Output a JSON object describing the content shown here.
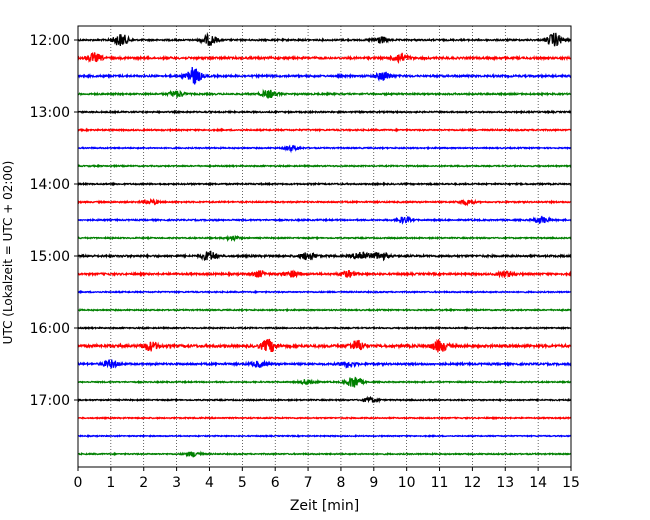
{
  "chart_data": {
    "type": "line",
    "subtype": "helicorder-seismogram",
    "title": "",
    "xlabel": "Zeit  [min]",
    "ylabel": "UTC (Lokalzeit = UTC + 02:00)",
    "xlim": [
      0,
      15
    ],
    "xticks": [
      "0",
      "1",
      "2",
      "3",
      "4",
      "5",
      "6",
      "7",
      "8",
      "9",
      "10",
      "11",
      "12",
      "13",
      "14",
      "15"
    ],
    "grid": "vertical dotted at each minute",
    "y_axis": "reversed (time increases downward)",
    "ytick_labels": [
      {
        "label": "12:00",
        "row": 0
      },
      {
        "label": "13:00",
        "row": 4
      },
      {
        "label": "14:00",
        "row": 8
      },
      {
        "label": "15:00",
        "row": 12
      },
      {
        "label": "16:00",
        "row": 16
      },
      {
        "label": "17:00",
        "row": 20
      }
    ],
    "row_minutes": 15,
    "color_cycle": [
      "#000000",
      "#ff0000",
      "#0000ff",
      "#008000"
    ],
    "traces": [
      {
        "row": 0,
        "start": "12:00",
        "color": "#000000",
        "noise": 0.45,
        "events": [
          [
            1.3,
            1.3
          ],
          [
            4.0,
            1.1
          ],
          [
            9.2,
            0.7
          ],
          [
            14.5,
            1.4
          ]
        ]
      },
      {
        "row": 1,
        "start": "12:15",
        "color": "#ff0000",
        "noise": 0.6,
        "events": [
          [
            0.5,
            0.9
          ],
          [
            9.8,
            1.0
          ]
        ]
      },
      {
        "row": 2,
        "start": "12:30",
        "color": "#0000ff",
        "noise": 0.55,
        "events": [
          [
            3.5,
            1.8
          ],
          [
            9.3,
            0.9
          ]
        ]
      },
      {
        "row": 3,
        "start": "12:45",
        "color": "#008000",
        "noise": 0.45,
        "events": [
          [
            3.0,
            0.7
          ],
          [
            5.8,
            0.8
          ]
        ]
      },
      {
        "row": 4,
        "start": "13:00",
        "color": "#000000",
        "noise": 0.4,
        "events": []
      },
      {
        "row": 5,
        "start": "13:15",
        "color": "#ff0000",
        "noise": 0.4,
        "events": []
      },
      {
        "row": 6,
        "start": "13:30",
        "color": "#0000ff",
        "noise": 0.35,
        "events": [
          [
            6.5,
            0.5
          ]
        ]
      },
      {
        "row": 7,
        "start": "13:45",
        "color": "#008000",
        "noise": 0.35,
        "events": []
      },
      {
        "row": 8,
        "start": "14:00",
        "color": "#000000",
        "noise": 0.4,
        "events": []
      },
      {
        "row": 9,
        "start": "14:15",
        "color": "#ff0000",
        "noise": 0.4,
        "events": [
          [
            2.2,
            0.5
          ],
          [
            11.8,
            0.5
          ]
        ]
      },
      {
        "row": 10,
        "start": "14:30",
        "color": "#0000ff",
        "noise": 0.4,
        "events": [
          [
            9.9,
            0.6
          ],
          [
            14.1,
            0.7
          ]
        ]
      },
      {
        "row": 11,
        "start": "14:45",
        "color": "#008000",
        "noise": 0.35,
        "events": [
          [
            4.7,
            0.4
          ]
        ]
      },
      {
        "row": 12,
        "start": "15:00",
        "color": "#000000",
        "noise": 0.55,
        "events": [
          [
            4.0,
            1.0
          ],
          [
            7.0,
            0.8
          ],
          [
            8.6,
            1.0
          ],
          [
            9.2,
            0.8
          ]
        ]
      },
      {
        "row": 13,
        "start": "15:15",
        "color": "#ff0000",
        "noise": 0.55,
        "events": [
          [
            5.5,
            0.6
          ],
          [
            6.5,
            0.6
          ],
          [
            8.2,
            0.6
          ],
          [
            13.0,
            0.6
          ]
        ]
      },
      {
        "row": 14,
        "start": "15:30",
        "color": "#0000ff",
        "noise": 0.35,
        "events": []
      },
      {
        "row": 15,
        "start": "15:45",
        "color": "#008000",
        "noise": 0.35,
        "events": []
      },
      {
        "row": 16,
        "start": "16:00",
        "color": "#000000",
        "noise": 0.35,
        "events": []
      },
      {
        "row": 17,
        "start": "16:15",
        "color": "#ff0000",
        "noise": 0.75,
        "events": [
          [
            2.2,
            0.9
          ],
          [
            5.8,
            1.3
          ],
          [
            8.5,
            1.1
          ],
          [
            11.0,
            1.2
          ]
        ]
      },
      {
        "row": 18,
        "start": "16:30",
        "color": "#0000ff",
        "noise": 0.55,
        "events": [
          [
            1.0,
            0.8
          ],
          [
            5.5,
            0.6
          ],
          [
            8.2,
            0.6
          ]
        ]
      },
      {
        "row": 19,
        "start": "16:45",
        "color": "#008000",
        "noise": 0.35,
        "events": [
          [
            7.0,
            0.6
          ],
          [
            8.4,
            1.2
          ]
        ]
      },
      {
        "row": 20,
        "start": "17:00",
        "color": "#000000",
        "noise": 0.35,
        "events": [
          [
            8.9,
            0.5
          ]
        ]
      },
      {
        "row": 21,
        "start": "17:15",
        "color": "#ff0000",
        "noise": 0.35,
        "events": []
      },
      {
        "row": 22,
        "start": "17:30",
        "color": "#0000ff",
        "noise": 0.3,
        "events": []
      },
      {
        "row": 23,
        "start": "17:45",
        "color": "#008000",
        "noise": 0.35,
        "events": [
          [
            3.5,
            0.5
          ]
        ]
      }
    ]
  }
}
